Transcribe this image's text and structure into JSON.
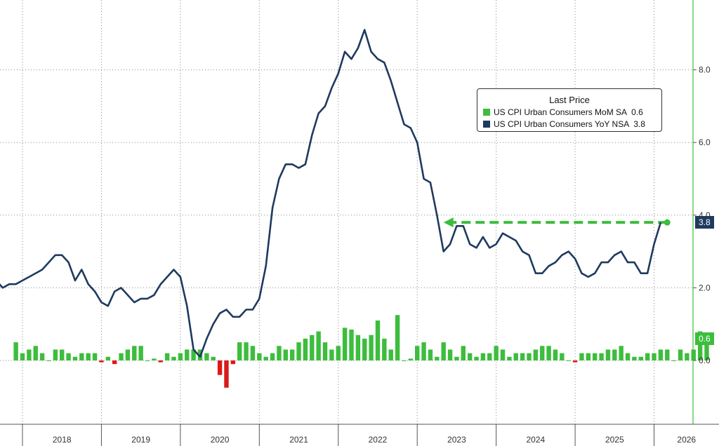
{
  "chart_data": {
    "type": "bar+line",
    "title": "",
    "legend": {
      "title": "Last Price",
      "placement": "top-right",
      "entries": [
        {
          "name": "US CPI Urban Consumers MoM SA",
          "value_label": "0.6",
          "color": "#3dbd3d"
        },
        {
          "name": "US CPI Urban Consumers YoY NSA",
          "value_label": "3.8",
          "color": "#1f3a5f"
        }
      ]
    },
    "x_axis": {
      "labels": [
        "2018",
        "2019",
        "2020",
        "2021",
        "2022",
        "2023",
        "2024",
        "2025",
        "2026"
      ]
    },
    "y_axis": {
      "ticks": [
        "8.0",
        "6.0",
        "4.0",
        "2.0",
        "0.0"
      ],
      "range": [
        -1.6,
        9.8
      ],
      "position": "right"
    },
    "grid": true,
    "series": [
      {
        "name": "US CPI Urban Consumers YoY NSA",
        "type": "line",
        "color": "#1f3a5f",
        "start": "2017-07",
        "values": [
          2.2,
          2.0,
          2.2,
          2.0,
          2.1,
          2.1,
          2.2,
          2.3,
          2.4,
          2.5,
          2.7,
          2.9,
          2.9,
          2.7,
          2.2,
          2.5,
          2.1,
          1.9,
          1.6,
          1.5,
          1.9,
          2.0,
          1.8,
          1.6,
          1.7,
          1.7,
          1.8,
          2.1,
          2.3,
          2.5,
          2.3,
          1.5,
          0.3,
          0.1,
          0.6,
          1.0,
          1.3,
          1.4,
          1.2,
          1.2,
          1.4,
          1.4,
          1.7,
          2.6,
          4.2,
          5.0,
          5.4,
          5.4,
          5.3,
          5.4,
          6.2,
          6.8,
          7.0,
          7.5,
          7.9,
          8.5,
          8.3,
          8.6,
          9.1,
          8.5,
          8.3,
          8.2,
          7.7,
          7.1,
          6.5,
          6.4,
          6.0,
          5.0,
          4.9,
          4.0,
          3.0,
          3.2,
          3.7,
          3.7,
          3.2,
          3.1,
          3.4,
          3.1,
          3.2,
          3.5,
          3.4,
          3.3,
          3.0,
          2.9,
          2.4,
          2.4,
          2.6,
          2.7,
          2.9,
          3.0,
          2.8,
          2.4,
          2.3,
          2.4,
          2.7,
          2.7,
          2.9,
          3.0,
          2.7,
          2.7,
          2.4,
          2.4,
          3.2,
          3.8
        ]
      },
      {
        "name": "US CPI Urban Consumers MoM SA",
        "type": "bar",
        "color_positive": "#3dbd3d",
        "color_negative": "#d91a1a",
        "start": "2017-12",
        "values": [
          0.5,
          0.2,
          0.3,
          0.4,
          0.2,
          0.0,
          0.3,
          0.3,
          0.2,
          0.1,
          0.2,
          0.2,
          0.2,
          -0.05,
          0.1,
          -0.1,
          0.2,
          0.3,
          0.4,
          0.4,
          0.0,
          0.05,
          -0.05,
          0.2,
          0.1,
          0.2,
          0.3,
          0.3,
          0.3,
          0.2,
          0.1,
          -0.4,
          -0.75,
          -0.1,
          0.5,
          0.5,
          0.4,
          0.2,
          0.1,
          0.2,
          0.4,
          0.3,
          0.3,
          0.5,
          0.6,
          0.7,
          0.8,
          0.5,
          0.3,
          0.4,
          0.9,
          0.85,
          0.7,
          0.6,
          0.7,
          1.1,
          0.6,
          0.3,
          1.25,
          0.0,
          0.05,
          0.4,
          0.5,
          0.3,
          0.1,
          0.5,
          0.3,
          0.1,
          0.4,
          0.2,
          0.1,
          0.2,
          0.2,
          0.4,
          0.3,
          0.1,
          0.2,
          0.2,
          0.2,
          0.3,
          0.4,
          0.4,
          0.3,
          0.2,
          0.0,
          -0.05,
          0.2,
          0.2,
          0.2,
          0.2,
          0.3,
          0.3,
          0.4,
          0.2,
          0.1,
          0.1,
          0.2,
          0.2,
          0.3,
          0.3,
          0.0,
          0.3,
          0.2,
          0.3,
          0.8,
          0.6
        ]
      }
    ],
    "annotations": [
      {
        "type": "dashed-arrow",
        "color": "#3dbd3d",
        "from_date": "2026-03",
        "to_date": "2023-05",
        "y": 3.8
      }
    ],
    "value_badges": [
      {
        "text": "3.8",
        "color": "#1f3a5f",
        "y": 3.8
      },
      {
        "text": "0.6",
        "color": "#3dbd3d",
        "y": 0.6
      }
    ],
    "partial_top_tick": "4.0"
  }
}
